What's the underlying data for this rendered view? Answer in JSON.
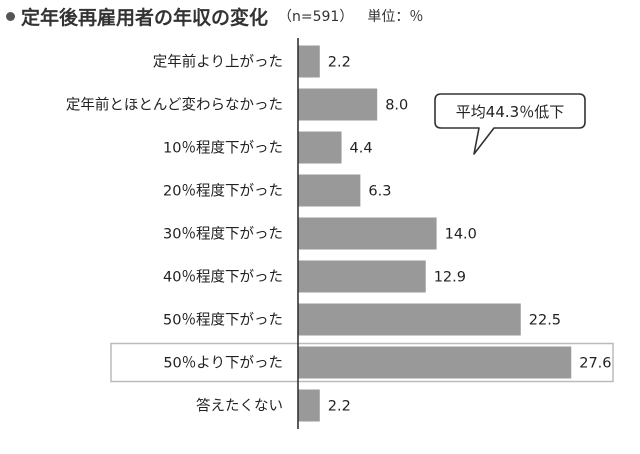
{
  "header": {
    "title": "定年後再雇用者の年収の変化",
    "sample": "（n=591）",
    "unit": "単位：％"
  },
  "callout": {
    "text": "平均44.3％低下"
  },
  "colors": {
    "bar": "#999999",
    "axis": "#333333",
    "highlight_border": "#bbbbbb",
    "text": "#222222"
  },
  "chart_data": {
    "type": "bar",
    "orientation": "horizontal",
    "categories": [
      "定年前より上がった",
      "定年前とほとんど変わらなかった",
      "10％程度下がった",
      "20％程度下がった",
      "30％程度下がった",
      "40％程度下がった",
      "50％程度下がった",
      "50％より下がった",
      "答えたくない"
    ],
    "values": [
      2.2,
      8.0,
      4.4,
      6.3,
      14.0,
      12.9,
      22.5,
      27.6,
      2.2
    ],
    "value_labels": [
      "2.2",
      "8.0",
      "4.4",
      "6.3",
      "14.0",
      "12.9",
      "22.5",
      "27.6",
      "2.2"
    ],
    "highlighted_category": "50％より下がった",
    "title": "定年後再雇用者の年収の変化",
    "xlabel": "",
    "ylabel": "",
    "xlim": [
      0,
      30
    ],
    "grid": false,
    "legend": "none"
  }
}
